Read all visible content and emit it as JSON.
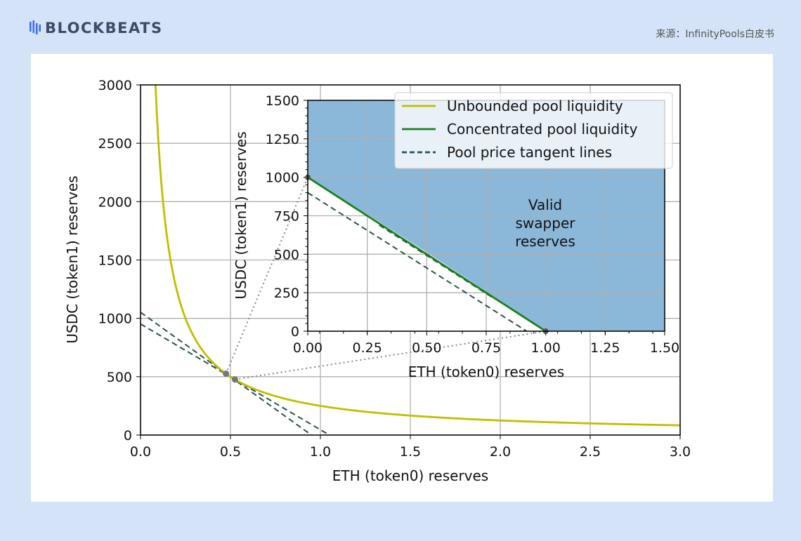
{
  "header": {
    "brand": "BLOCKBEATS",
    "source": "来源：InfinityPools白皮书"
  },
  "chart_data": [
    {
      "type": "line",
      "xlabel": "ETH (token0) reserves",
      "ylabel": "USDC (token1) reserves",
      "xlim": [
        0,
        3
      ],
      "ylim": [
        0,
        3000
      ],
      "xticks": [
        "0.0",
        "0.5",
        "1.0",
        "1.5",
        "2.0",
        "2.5",
        "3.0"
      ],
      "yticks": [
        "0",
        "500",
        "1000",
        "1500",
        "2000",
        "2500",
        "3000"
      ],
      "grid": true,
      "series": [
        {
          "name": "Unbounded pool liquidity",
          "color": "#bfbf00",
          "formula": "y=250/x"
        }
      ],
      "points": [
        {
          "x": 0.475,
          "y": 526
        },
        {
          "x": 0.525,
          "y": 476
        }
      ],
      "tangents": [
        {
          "x0": 0,
          "y0": 1052,
          "x1": 0.95,
          "y1": 0
        },
        {
          "x0": 0,
          "y0": 952,
          "x1": 1.05,
          "y1": 0
        }
      ]
    },
    {
      "type": "line",
      "xlabel": "ETH (token0) reserves",
      "ylabel": "USDC (token1) reserves",
      "xlim": [
        0,
        1.5
      ],
      "ylim": [
        0,
        1500
      ],
      "xticks": [
        "0.00",
        "0.25",
        "0.50",
        "0.75",
        "1.00",
        "1.25",
        "1.50"
      ],
      "yticks": [
        "0",
        "250",
        "500",
        "750",
        "1000",
        "1250",
        "1500"
      ],
      "grid": true,
      "series": [
        {
          "name": "Concentrated pool liquidity",
          "color": "#1a801a",
          "x": [
            0,
            1
          ],
          "y": [
            1000,
            0
          ]
        }
      ],
      "tangents": [
        {
          "x0": 0,
          "y0": 900,
          "x1": 0.92,
          "y1": 0
        },
        {
          "x0": 0.3,
          "y0": 690,
          "x1": 0.78,
          "y1": 215
        }
      ],
      "region_label": "Valid swapper reserves",
      "region_color": "#8bb8d9",
      "legend": {
        "placement": "top-right",
        "entries": [
          "Unbounded pool liquidity",
          "Concentrated pool liquidity",
          "Pool price tangent lines"
        ]
      }
    }
  ]
}
